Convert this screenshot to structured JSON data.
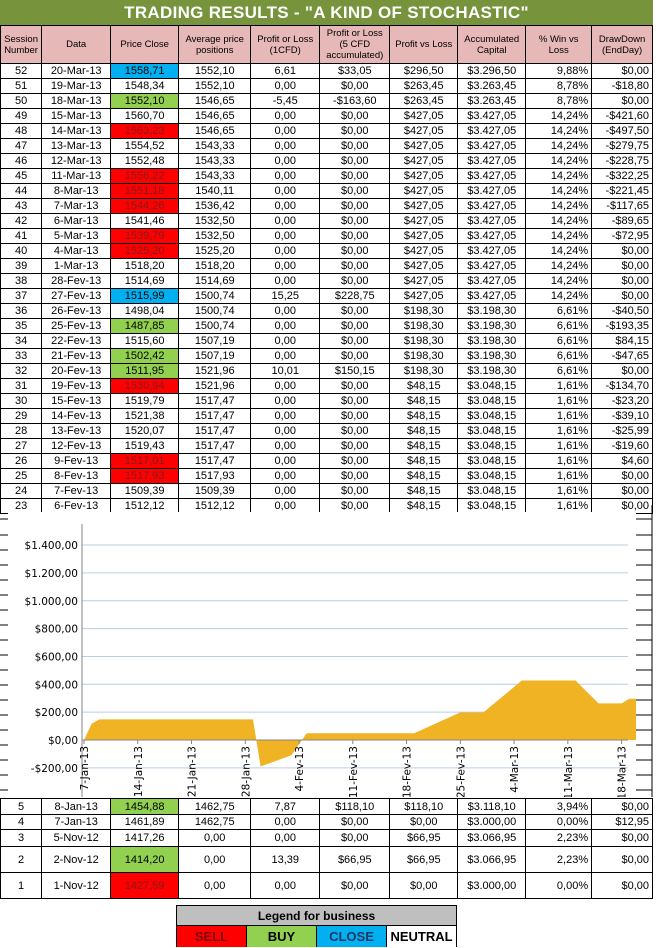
{
  "title": "TRADING RESULTS - \"A KIND OF STOCHASTIC\"",
  "columns": [
    "Session Number",
    "Data",
    "Price Close",
    "Average price positions",
    "Profit or Loss (1CFD)",
    "Profit or Loss (5 CFD accumulated)",
    "Profit vs Loss",
    "Accumulated Capital",
    "% Win vs Loss",
    "DrawDown (EndDay)"
  ],
  "colors": {
    "title_bg": "#77933c",
    "header_bg": "#e6b8b7",
    "sell": "#ff0000",
    "buy": "#92d050",
    "close": "#00b0f0",
    "neutral": "#ffffff",
    "chart_fill": "#f0b323"
  },
  "rows_top": [
    {
      "session": "52",
      "date": "20-Mar-13",
      "price": "1558,71",
      "type": "close",
      "avg": "1552,10",
      "pl1": "6,61",
      "pl5": "$33,05",
      "pvl": "$296,50",
      "capital": "$3.296,50",
      "win": "9,88%",
      "dd": "$0,00"
    },
    {
      "session": "51",
      "date": "19-Mar-13",
      "price": "1548,34",
      "type": "neutral",
      "avg": "1552,10",
      "pl1": "0,00",
      "pl5": "$0,00",
      "pvl": "$263,45",
      "capital": "$3.263,45",
      "win": "8,78%",
      "dd": "-$18,80"
    },
    {
      "session": "50",
      "date": "18-Mar-13",
      "price": "1552,10",
      "type": "buy",
      "avg": "1546,65",
      "pl1": "-5,45",
      "pl5": "-$163,60",
      "pvl": "$263,45",
      "capital": "$3.263,45",
      "win": "8,78%",
      "dd": "$0,00"
    },
    {
      "session": "49",
      "date": "15-Mar-13",
      "price": "1560,70",
      "type": "neutral",
      "avg": "1546,65",
      "pl1": "0,00",
      "pl5": "$0,00",
      "pvl": "$427,05",
      "capital": "$3.427,05",
      "win": "14,24%",
      "dd": "-$421,60"
    },
    {
      "session": "48",
      "date": "14-Mar-13",
      "price": "1563,23",
      "type": "sell",
      "avg": "1546,65",
      "pl1": "0,00",
      "pl5": "$0,00",
      "pvl": "$427,05",
      "capital": "$3.427,05",
      "win": "14,24%",
      "dd": "-$497,50"
    },
    {
      "session": "47",
      "date": "13-Mar-13",
      "price": "1554,52",
      "type": "neutral",
      "avg": "1543,33",
      "pl1": "0,00",
      "pl5": "$0,00",
      "pvl": "$427,05",
      "capital": "$3.427,05",
      "win": "14,24%",
      "dd": "-$279,75"
    },
    {
      "session": "46",
      "date": "12-Mar-13",
      "price": "1552,48",
      "type": "neutral",
      "avg": "1543,33",
      "pl1": "0,00",
      "pl5": "$0,00",
      "pvl": "$427,05",
      "capital": "$3.427,05",
      "win": "14,24%",
      "dd": "-$228,75"
    },
    {
      "session": "45",
      "date": "11-Mar-13",
      "price": "1556,22",
      "type": "sell",
      "avg": "1543,33",
      "pl1": "0,00",
      "pl5": "$0,00",
      "pvl": "$427,05",
      "capital": "$3.427,05",
      "win": "14,24%",
      "dd": "-$322,25"
    },
    {
      "session": "44",
      "date": "8-Mar-13",
      "price": "1551,18",
      "type": "sell",
      "avg": "1540,11",
      "pl1": "0,00",
      "pl5": "$0,00",
      "pvl": "$427,05",
      "capital": "$3.427,05",
      "win": "14,24%",
      "dd": "-$221,45"
    },
    {
      "session": "43",
      "date": "7-Mar-13",
      "price": "1544,26",
      "type": "sell",
      "avg": "1536,42",
      "pl1": "0,00",
      "pl5": "$0,00",
      "pvl": "$427,05",
      "capital": "$3.427,05",
      "win": "14,24%",
      "dd": "-$117,65"
    },
    {
      "session": "42",
      "date": "6-Mar-13",
      "price": "1541,46",
      "type": "neutral",
      "avg": "1532,50",
      "pl1": "0,00",
      "pl5": "$0,00",
      "pvl": "$427,05",
      "capital": "$3.427,05",
      "win": "14,24%",
      "dd": "-$89,65"
    },
    {
      "session": "41",
      "date": "5-Mar-13",
      "price": "1539,79",
      "type": "sell",
      "avg": "1532,50",
      "pl1": "0,00",
      "pl5": "$0,00",
      "pvl": "$427,05",
      "capital": "$3.427,05",
      "win": "14,24%",
      "dd": "-$72,95"
    },
    {
      "session": "40",
      "date": "4-Mar-13",
      "price": "1525,20",
      "type": "sell",
      "avg": "1525,20",
      "pl1": "0,00",
      "pl5": "$0,00",
      "pvl": "$427,05",
      "capital": "$3.427,05",
      "win": "14,24%",
      "dd": "$0,00"
    },
    {
      "session": "39",
      "date": "1-Mar-13",
      "price": "1518,20",
      "type": "neutral",
      "avg": "1518,20",
      "pl1": "0,00",
      "pl5": "$0,00",
      "pvl": "$427,05",
      "capital": "$3.427,05",
      "win": "14,24%",
      "dd": "$0,00"
    },
    {
      "session": "38",
      "date": "28-Fev-13",
      "price": "1514,69",
      "type": "neutral",
      "avg": "1514,69",
      "pl1": "0,00",
      "pl5": "$0,00",
      "pvl": "$427,05",
      "capital": "$3.427,05",
      "win": "14,24%",
      "dd": "$0,00"
    },
    {
      "session": "37",
      "date": "27-Fev-13",
      "price": "1515,99",
      "type": "close",
      "avg": "1500,74",
      "pl1": "15,25",
      "pl5": "$228,75",
      "pvl": "$427,05",
      "capital": "$3.427,05",
      "win": "14,24%",
      "dd": "$0,00"
    },
    {
      "session": "36",
      "date": "26-Fev-13",
      "price": "1498,04",
      "type": "neutral",
      "avg": "1500,74",
      "pl1": "0,00",
      "pl5": "$0,00",
      "pvl": "$198,30",
      "capital": "$3.198,30",
      "win": "6,61%",
      "dd": "-$40,50"
    },
    {
      "session": "35",
      "date": "25-Fev-13",
      "price": "1487,85",
      "type": "buy",
      "avg": "1500,74",
      "pl1": "0,00",
      "pl5": "$0,00",
      "pvl": "$198,30",
      "capital": "$3.198,30",
      "win": "6,61%",
      "dd": "-$193,35"
    },
    {
      "session": "34",
      "date": "22-Fev-13",
      "price": "1515,60",
      "type": "neutral",
      "avg": "1507,19",
      "pl1": "0,00",
      "pl5": "$0,00",
      "pvl": "$198,30",
      "capital": "$3.198,30",
      "win": "6,61%",
      "dd": "$84,15"
    },
    {
      "session": "33",
      "date": "21-Fev-13",
      "price": "1502,42",
      "type": "buy",
      "avg": "1507,19",
      "pl1": "0,00",
      "pl5": "$0,00",
      "pvl": "$198,30",
      "capital": "$3.198,30",
      "win": "6,61%",
      "dd": "-$47,65"
    },
    {
      "session": "32",
      "date": "20-Fev-13",
      "price": "1511,95",
      "type": "buy",
      "avg": "1521,96",
      "pl1": "10,01",
      "pl5": "$150,15",
      "pvl": "$198,30",
      "capital": "$3.198,30",
      "win": "6,61%",
      "dd": "$0,00"
    },
    {
      "session": "31",
      "date": "19-Fev-13",
      "price": "1530,94",
      "type": "sell",
      "avg": "1521,96",
      "pl1": "0,00",
      "pl5": "$0,00",
      "pvl": "$48,15",
      "capital": "$3.048,15",
      "win": "1,61%",
      "dd": "-$134,70"
    },
    {
      "session": "30",
      "date": "15-Fev-13",
      "price": "1519,79",
      "type": "neutral",
      "avg": "1517,47",
      "pl1": "0,00",
      "pl5": "$0,00",
      "pvl": "$48,15",
      "capital": "$3.048,15",
      "win": "1,61%",
      "dd": "-$23,20"
    },
    {
      "session": "29",
      "date": "14-Fev-13",
      "price": "1521,38",
      "type": "neutral",
      "avg": "1517,47",
      "pl1": "0,00",
      "pl5": "$0,00",
      "pvl": "$48,15",
      "capital": "$3.048,15",
      "win": "1,61%",
      "dd": "-$39,10"
    },
    {
      "session": "28",
      "date": "13-Fev-13",
      "price": "1520,07",
      "type": "neutral",
      "avg": "1517,47",
      "pl1": "0,00",
      "pl5": "$0,00",
      "pvl": "$48,15",
      "capital": "$3.048,15",
      "win": "1,61%",
      "dd": "-$25,99"
    },
    {
      "session": "27",
      "date": "12-Fev-13",
      "price": "1519,43",
      "type": "neutral",
      "avg": "1517,47",
      "pl1": "0,00",
      "pl5": "$0,00",
      "pvl": "$48,15",
      "capital": "$3.048,15",
      "win": "1,61%",
      "dd": "-$19,60"
    },
    {
      "session": "26",
      "date": "9-Fev-13",
      "price": "1517,01",
      "type": "sell",
      "avg": "1517,47",
      "pl1": "0,00",
      "pl5": "$0,00",
      "pvl": "$48,15",
      "capital": "$3.048,15",
      "win": "1,61%",
      "dd": "$4,60"
    },
    {
      "session": "25",
      "date": "8-Fev-13",
      "price": "1517,93",
      "type": "sell",
      "avg": "1517,93",
      "pl1": "0,00",
      "pl5": "$0,00",
      "pvl": "$48,15",
      "capital": "$3.048,15",
      "win": "1,61%",
      "dd": "$0,00"
    },
    {
      "session": "24",
      "date": "7-Fev-13",
      "price": "1509,39",
      "type": "neutral",
      "avg": "1509,39",
      "pl1": "0,00",
      "pl5": "$0,00",
      "pvl": "$48,15",
      "capital": "$3.048,15",
      "win": "1,61%",
      "dd": "$0,00"
    },
    {
      "session": "23",
      "date": "6-Fev-13",
      "price": "1512,12",
      "type": "neutral",
      "avg": "1512,12",
      "pl1": "0,00",
      "pl5": "$0,00",
      "pvl": "$48,15",
      "capital": "$3.048,15",
      "win": "1,61%",
      "dd": "$0,00"
    }
  ],
  "rows_bottom": [
    {
      "session": "5",
      "date": "8-Jan-13",
      "price": "1454,88",
      "type": "buy",
      "avg": "1462,75",
      "pl1": "7,87",
      "pl5": "$118,10",
      "pvl": "$118,10",
      "capital": "$3.118,10",
      "win": "3,94%",
      "dd": "$0,00"
    },
    {
      "session": "4",
      "date": "7-Jan-13",
      "price": "1461,89",
      "type": "neutral",
      "avg": "1462,75",
      "pl1": "0,00",
      "pl5": "$0,00",
      "pvl": "$0,00",
      "capital": "$3.000,00",
      "win": "0,00%",
      "dd": "$12,95"
    },
    {
      "session": "3",
      "date": "5-Nov-12",
      "price": "1417,26",
      "type": "neutral",
      "avg": "0,00",
      "pl1": "0,00",
      "pl5": "$0,00",
      "pvl": "$66,95",
      "capital": "$3.066,95",
      "win": "2,23%",
      "dd": "$0,00"
    },
    {
      "session": "2",
      "date": "2-Nov-12",
      "price": "1414,20",
      "type": "buy",
      "avg": "0,00",
      "pl1": "13,39",
      "pl5": "$66,95",
      "pvl": "$66,95",
      "capital": "$3.066,95",
      "win": "2,23%",
      "dd": "$0,00"
    },
    {
      "session": "1",
      "date": "1-Nov-12",
      "price": "1427,59",
      "type": "sell",
      "avg": "0,00",
      "pl1": "0,00",
      "pl5": "$0,00",
      "pvl": "$0,00",
      "capital": "$3.000,00",
      "win": "0,00%",
      "dd": "$0,00"
    }
  ],
  "legend": {
    "title": "Legend for business",
    "items": [
      {
        "label": "SELL",
        "color": "#ff0000",
        "text_color": "#7f0000"
      },
      {
        "label": "BUY",
        "color": "#92d050",
        "text_color": "#000000"
      },
      {
        "label": "CLOSE",
        "color": "#00b0f0",
        "text_color": "#1f3864"
      },
      {
        "label": "NEUTRAL",
        "color": "#ffffff",
        "text_color": "#000000"
      }
    ]
  },
  "chart_data": {
    "type": "area",
    "title": "",
    "xlabel": "",
    "ylabel": "",
    "ylim": [
      -200,
      1400
    ],
    "yticks": [
      "$1.400,00",
      "$1.200,00",
      "$1.000,00",
      "$800,00",
      "$600,00",
      "$400,00",
      "$200,00",
      "$0,00",
      "-$200,00"
    ],
    "ytick_values": [
      1400,
      1200,
      1000,
      800,
      600,
      400,
      200,
      0,
      -200
    ],
    "xticks": [
      "7-Jan-13",
      "14-Jan-13",
      "21-Jan-13",
      "28-Jan-13",
      "4-Fev-13",
      "11-Fev-13",
      "18-Fev-13",
      "25-Fev-13",
      "4-Mar-13",
      "11-Mar-13",
      "18-Mar-13"
    ],
    "grid": true,
    "legend": false,
    "series": [
      {
        "name": "Profit vs Loss",
        "color": "#f0b323",
        "x_days": [
          0,
          1,
          2,
          3,
          21,
          22,
          23,
          27,
          28,
          29,
          38,
          39,
          42,
          43,
          49,
          50,
          52,
          57,
          59,
          60,
          63,
          64,
          67,
          70,
          71,
          72
        ],
        "values": [
          0,
          118,
          148,
          148,
          148,
          148,
          -190,
          -110,
          -30,
          48,
          48,
          48,
          48,
          48,
          198,
          198,
          198,
          427,
          427,
          427,
          427,
          427,
          263,
          263,
          296,
          296
        ]
      }
    ]
  }
}
